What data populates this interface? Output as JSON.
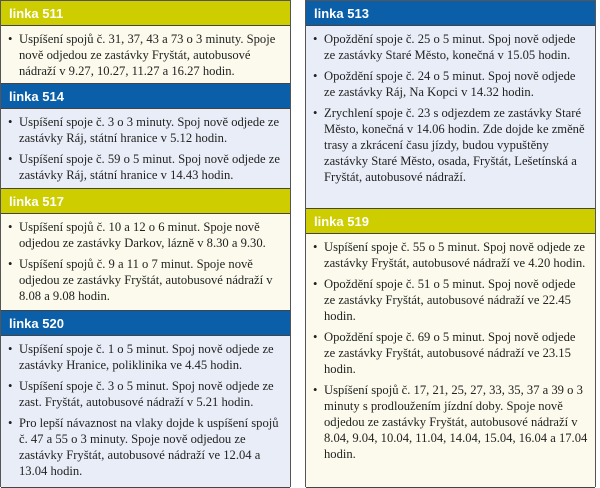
{
  "colors": {
    "yellow_header": "#cdcd00",
    "blue_header": "#0a5fa8",
    "yellow_body": "#fbfaec",
    "blue_body": "#e9edf7"
  },
  "left": [
    {
      "title": "linka 511",
      "theme": "yellow",
      "items": [
        "Uspíšení spojů č. 31, 37, 43 a 73 o 3 minuty. Spoje nově odjedou ze zastávky Fryštát, autobu­sové nádraží v 9.27, 10.27, 11.27 a 16.27 hodin."
      ]
    },
    {
      "title": "linka 514",
      "theme": "blue",
      "items": [
        "Uspíšení spoje č. 3 o 3 minuty. Spoj nově odjede ze zastávky Ráj, státní hranice v 5.12 hodin.",
        "Uspíšení spoje č. 59 o 5 minut. Spoj nově odjede ze zastávky Ráj, státní hranice v 14.43 hodin."
      ]
    },
    {
      "title": "linka 517",
      "theme": "yellow",
      "items": [
        "Uspíšení spojů č. 10 a 12 o 6 minut. Spoje nově odjedou ze zastávky Darkov, lázně v 8.30 a 9.30.",
        "Uspíšení spojů č. 9 a 11 o 7 minut. Spoje nově odjedou ze zastávky Fryštát, autobusové nádraží v 8.08 a 9.08 hodin."
      ]
    },
    {
      "title": "linka 520",
      "theme": "blue",
      "items": [
        "Uspíšení spoje č. 1 o 5 minut. Spoj nově odjede ze zastávky Hranice, poliklinika ve 4.45 hodin.",
        "Uspíšení spoje č. 3 o 5 minut. Spoj nově odjede ze zast. Fryštát, autobusové nádraží v 5.21 hodin.",
        "Pro lepší návaznost na vlaky dojde k uspíšení spojů č. 47 a 55 o 3 minuty. Spoje nově odje­dou ze zastávky Fryštát, autobusové nádraží ve 12.04 a 13.04 hodin."
      ]
    }
  ],
  "right": [
    {
      "title": "linka 513",
      "theme": "blue",
      "items": [
        "Opoždění spoje č. 25 o 5 minut. Spoj nově od­jede ze zastávky Staré Město, konečná v 15.05 hodin.",
        "Opoždění spoje č. 24 o 5 minut. Spoj nově odje­de ze zastávky Ráj, Na Kopci v 14.32 hodin.",
        "Zrychlení spoje č. 23 s odjezdem ze zastávky Staré Město, konečná v 14.06 hodin. Zde dojde ke změně trasy a zkrácení času jízdy, budou vypuštěny zastávky Staré Město, osada, Fryštát, Lešetínská a Fryštát, autobusové nádraží."
      ]
    },
    {
      "title": "linka 519",
      "theme": "yellow",
      "items": [
        "Uspíšení spoje č. 55 o 5 minut. Spoj nově odjede ze zastávky Fryštát, autobusové nádraží ve 4.20 hodin.",
        "Opoždění spoje č. 51 o 5 minut. Spoj nově odjede ze zastávky Fryštát, autobusové nádraží ve 22.45 hodin.",
        "Opoždění spoje č. 69 o 5 minut. Spoj nově odjede ze zastávky Fryštát, autobusové nádraží ve 23.15 hodin.",
        "Uspíšení spojů č. 17, 21, 25, 27, 33, 35, 37 a 39 o 3 minuty s prodloužením jízdní doby. Spoje nově odjedou ze zastávky Fryštát, autobusové nádraží v 8.04, 9.04, 10.04, 11.04, 14.04, 15.04, 16.04 a 17.04 hodin."
      ]
    }
  ]
}
